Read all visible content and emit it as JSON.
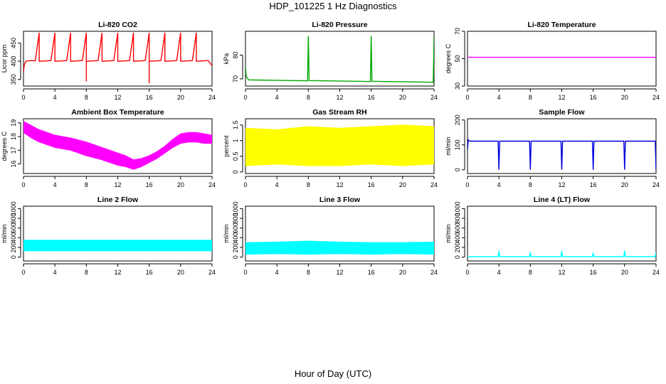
{
  "figure": {
    "title": "HDP_101225  1 Hz Diagnostics",
    "xlabel": "Hour of Day (UTC)"
  },
  "chart_data": [
    {
      "type": "line",
      "title": "Li-820 CO2",
      "ylabel": "Licor ppm",
      "color": "#ff0000",
      "xlim": [
        0,
        24
      ],
      "ylim": [
        332,
        482
      ],
      "xticks": [
        0,
        4,
        8,
        12,
        16,
        20,
        24
      ],
      "yticks": [
        350,
        400,
        450
      ],
      "series": [
        {
          "x": [
            0,
            0.1,
            0.3,
            1,
            1.5,
            2,
            2,
            3,
            3.5,
            4,
            4,
            5,
            5.5,
            6,
            6,
            7,
            7.5,
            8,
            8,
            8,
            9,
            9.5,
            10,
            10,
            11,
            11.5,
            12,
            12,
            13,
            13.5,
            14,
            14,
            15,
            15.5,
            16,
            16,
            16,
            17,
            17.5,
            18,
            18,
            19,
            19.5,
            20,
            20,
            21,
            21.5,
            22,
            22,
            23,
            23.5,
            24
          ],
          "values": [
            370,
            390,
            400,
            402,
            401,
            478,
            400,
            401,
            402,
            478,
            400,
            401,
            402,
            478,
            400,
            401,
            402,
            478,
            345,
            400,
            401,
            402,
            478,
            400,
            401,
            402,
            478,
            400,
            401,
            402,
            478,
            400,
            401,
            402,
            478,
            340,
            400,
            401,
            402,
            478,
            400,
            401,
            402,
            478,
            400,
            401,
            402,
            478,
            400,
            401,
            402,
            388
          ]
        }
      ]
    },
    {
      "type": "line",
      "title": "Li-820 Pressure",
      "ylabel": "kPa",
      "color": "#00aa00",
      "xlim": [
        0,
        24
      ],
      "ylim": [
        67,
        90
      ],
      "xticks": [
        0,
        4,
        8,
        12,
        16,
        20,
        24
      ],
      "yticks": [
        70,
        80
      ],
      "series": [
        {
          "x": [
            0,
            0.1,
            0.4,
            2,
            4,
            6,
            7.9,
            8,
            8.1,
            10,
            12,
            14,
            15.9,
            16,
            16.1,
            18,
            20,
            22,
            23.9,
            24
          ],
          "values": [
            75,
            71,
            69.6,
            69.5,
            69.4,
            69.3,
            69.2,
            88,
            69.3,
            69.2,
            69.1,
            69.0,
            68.9,
            88,
            69.0,
            68.9,
            68.8,
            68.7,
            68.6,
            88
          ]
        }
      ]
    },
    {
      "type": "line",
      "title": "Li-820 Temperature",
      "ylabel": "degrees C",
      "color": "#ff00ff",
      "xlim": [
        0,
        24
      ],
      "ylim": [
        30,
        70
      ],
      "xticks": [
        0,
        4,
        8,
        12,
        16,
        20,
        24
      ],
      "yticks": [
        30,
        50,
        70
      ],
      "series": [
        {
          "x": [
            0,
            24
          ],
          "values": [
            51,
            51
          ]
        }
      ]
    },
    {
      "type": "area",
      "title": "Ambient Box Temperature",
      "ylabel": "degrees C",
      "color": "#ff00ff",
      "xlim": [
        0,
        24
      ],
      "ylim": [
        15.3,
        19.3
      ],
      "xticks": [
        0,
        4,
        8,
        12,
        16,
        20,
        24
      ],
      "yticks": [
        16,
        17,
        18,
        19
      ],
      "series": [
        {
          "x": [
            0,
            1,
            2,
            4,
            6,
            8,
            10,
            12,
            13,
            14,
            15,
            16,
            17,
            18,
            19,
            20,
            21,
            22,
            23,
            24
          ],
          "upper": [
            19.1,
            18.8,
            18.5,
            18.1,
            17.9,
            17.6,
            17.2,
            16.8,
            16.6,
            16.3,
            16.4,
            16.6,
            16.9,
            17.3,
            17.8,
            18.2,
            18.3,
            18.3,
            18.2,
            18.1
          ],
          "lower": [
            18.3,
            17.9,
            17.6,
            17.2,
            17.0,
            16.6,
            16.3,
            15.9,
            15.8,
            15.6,
            15.8,
            16.1,
            16.4,
            16.8,
            17.2,
            17.5,
            17.6,
            17.6,
            17.5,
            17.5
          ]
        }
      ]
    },
    {
      "type": "area",
      "title": "Gas Stream RH",
      "ylabel": "percent",
      "color": "#ffff00",
      "xlim": [
        0,
        24
      ],
      "ylim": [
        -0.05,
        1.7
      ],
      "xticks": [
        0,
        4,
        8,
        12,
        16,
        20,
        24
      ],
      "yticks": [
        0.0,
        0.5,
        1.0,
        1.5
      ],
      "series": [
        {
          "x": [
            0,
            4,
            8,
            12,
            16,
            20,
            24
          ],
          "upper": [
            1.4,
            1.35,
            1.45,
            1.4,
            1.45,
            1.5,
            1.45
          ],
          "lower": [
            0.2,
            0.25,
            0.2,
            0.2,
            0.25,
            0.2,
            0.25
          ]
        }
      ]
    },
    {
      "type": "line",
      "title": "Sample Flow",
      "ylabel": "ml/min",
      "color": "#0000dd",
      "xlim": [
        0,
        24
      ],
      "ylim": [
        -15,
        205
      ],
      "xticks": [
        0,
        4,
        8,
        12,
        16,
        20,
        24
      ],
      "yticks": [
        0,
        100,
        200
      ],
      "series": [
        {
          "x": [
            0,
            0.1,
            0.3,
            3.9,
            4,
            4.1,
            7.9,
            8,
            8.1,
            11.9,
            12,
            12.1,
            15.9,
            16,
            16.1,
            19.9,
            20,
            20.1,
            23.9,
            24
          ],
          "values": [
            80,
            120,
            115,
            115,
            0,
            115,
            115,
            0,
            115,
            115,
            0,
            115,
            115,
            0,
            115,
            115,
            0,
            115,
            115,
            0
          ]
        }
      ]
    },
    {
      "type": "area",
      "title": "Line 2 Flow",
      "ylabel": "ml/min",
      "color": "#00ffff",
      "xlim": [
        0,
        24
      ],
      "ylim": [
        -80,
        1050
      ],
      "xticks": [
        0,
        4,
        8,
        12,
        16,
        20,
        24
      ],
      "yticks": [
        0,
        200,
        400,
        600,
        800,
        1000
      ],
      "series": [
        {
          "x": [
            0,
            24
          ],
          "upper": [
            350,
            350
          ],
          "lower": [
            130,
            130
          ]
        }
      ]
    },
    {
      "type": "area",
      "title": "Line 3 Flow",
      "ylabel": "ml/min",
      "color": "#00ffff",
      "xlim": [
        0,
        24
      ],
      "ylim": [
        -80,
        1050
      ],
      "xticks": [
        0,
        4,
        8,
        12,
        16,
        20,
        24
      ],
      "yticks": [
        0,
        200,
        400,
        600,
        800,
        1000
      ],
      "series": [
        {
          "x": [
            0,
            4,
            8,
            12,
            16,
            20,
            24
          ],
          "upper": [
            300,
            310,
            330,
            310,
            300,
            300,
            310
          ],
          "lower": [
            60,
            70,
            60,
            70,
            60,
            70,
            60
          ]
        }
      ]
    },
    {
      "type": "line",
      "title": "Line 4 (LT) Flow",
      "ylabel": "ml/min",
      "color": "#00ffff",
      "xlim": [
        0,
        24
      ],
      "ylim": [
        -80,
        1050
      ],
      "xticks": [
        0,
        4,
        8,
        12,
        16,
        20,
        24
      ],
      "yticks": [
        0,
        200,
        400,
        600,
        800,
        1000
      ],
      "series": [
        {
          "x": [
            0,
            3.9,
            4,
            4.1,
            7.9,
            8,
            8.1,
            11.9,
            12,
            12.1,
            15.9,
            16,
            16.1,
            19.9,
            20,
            20.1,
            23.9,
            24
          ],
          "values": [
            10,
            10,
            130,
            10,
            10,
            100,
            10,
            10,
            130,
            10,
            10,
            90,
            10,
            10,
            130,
            10,
            10,
            100
          ]
        }
      ]
    }
  ]
}
